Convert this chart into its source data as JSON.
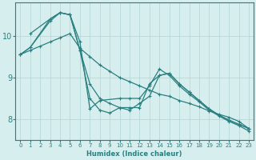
{
  "xlabel": "Humidex (Indice chaleur)",
  "background_color": "#d6eeee",
  "grid_color": "#b8d8d8",
  "line_color": "#2a8080",
  "xlim": [
    -0.5,
    23.5
  ],
  "ylim": [
    7.5,
    10.8
  ],
  "yticks": [
    8,
    9,
    10
  ],
  "xticks": [
    0,
    1,
    2,
    3,
    4,
    5,
    6,
    7,
    8,
    9,
    10,
    11,
    12,
    13,
    14,
    15,
    16,
    17,
    18,
    19,
    20,
    21,
    22,
    23
  ],
  "series": [
    {
      "x": [
        0,
        1,
        2,
        3,
        4,
        5,
        6,
        7,
        8,
        9,
        10,
        11,
        12,
        13,
        14,
        15,
        16,
        17,
        18,
        19,
        20,
        21,
        22,
        23
      ],
      "y": [
        9.55,
        9.65,
        9.75,
        9.85,
        9.95,
        10.05,
        9.7,
        9.5,
        9.3,
        9.15,
        9.0,
        8.9,
        8.8,
        8.7,
        8.6,
        8.55,
        8.45,
        8.38,
        8.3,
        8.2,
        8.12,
        8.05,
        7.95,
        7.78
      ]
    },
    {
      "x": [
        0,
        1,
        3,
        4,
        5,
        6,
        7,
        8,
        9,
        10,
        11,
        12,
        13,
        14,
        15,
        16,
        17,
        18,
        19,
        20,
        21,
        22,
        23
      ],
      "y": [
        9.55,
        9.72,
        10.4,
        10.55,
        10.5,
        9.65,
        8.85,
        8.5,
        8.38,
        8.28,
        8.22,
        8.38,
        8.55,
        9.05,
        9.1,
        8.85,
        8.65,
        8.45,
        8.25,
        8.1,
        7.98,
        7.88,
        7.78
      ]
    },
    {
      "x": [
        1,
        3,
        4,
        5,
        6,
        7,
        8,
        9,
        10,
        11,
        12,
        13,
        14,
        15,
        16,
        17,
        18,
        19,
        20,
        21,
        22,
        23
      ],
      "y": [
        10.05,
        10.4,
        10.55,
        10.5,
        9.65,
        8.5,
        8.22,
        8.15,
        8.28,
        8.28,
        8.28,
        8.85,
        9.05,
        9.1,
        8.85,
        8.65,
        8.45,
        8.25,
        8.1,
        7.98,
        7.88,
        7.78
      ]
    },
    {
      "x": [
        0,
        1,
        3,
        4,
        5,
        6,
        7,
        8,
        10,
        11,
        12,
        13,
        14,
        15,
        16,
        17,
        18,
        19,
        20,
        21,
        22,
        23
      ],
      "y": [
        9.55,
        9.72,
        10.35,
        10.55,
        10.5,
        9.85,
        8.25,
        8.45,
        8.5,
        8.5,
        8.5,
        8.8,
        9.2,
        9.05,
        8.8,
        8.6,
        8.42,
        8.22,
        8.08,
        7.95,
        7.85,
        7.72
      ]
    }
  ]
}
